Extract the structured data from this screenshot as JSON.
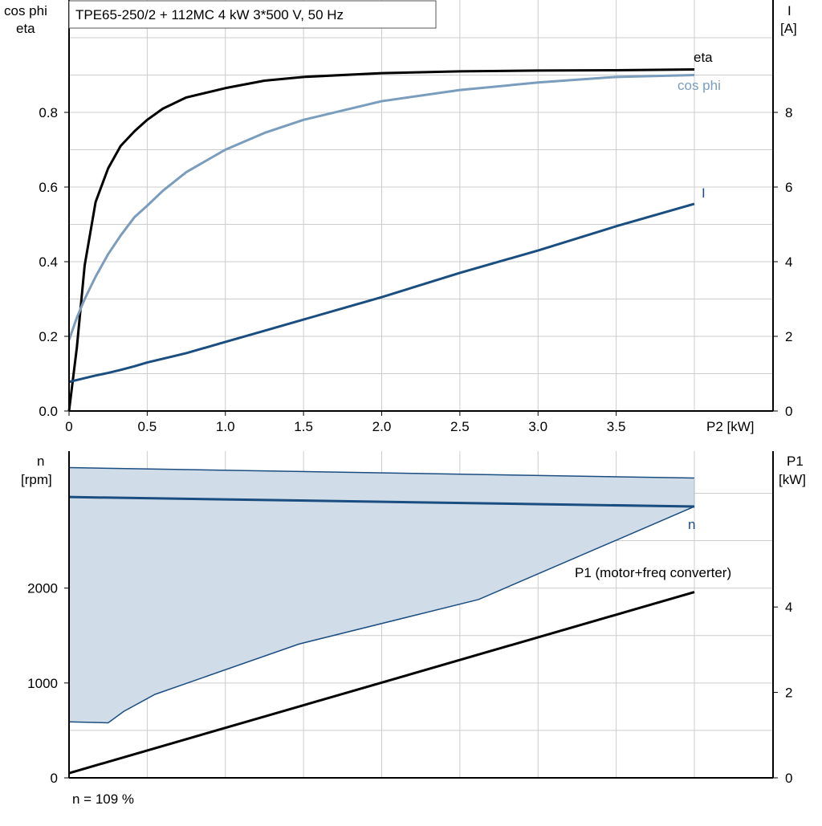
{
  "title": "TPE65-250/2 + 112MC   4 kW   3*500 V, 50 Hz",
  "footer_note": "n = 109 %",
  "colors": {
    "eta": "#000000",
    "cos_phi": "#7a9cbd",
    "current": "#1a4d80",
    "n_band_fill": "#d0dce8",
    "n_band_edge": "#1a4d80",
    "p1": "#000000",
    "grid": "#cccccc"
  },
  "chart_data": [
    {
      "type": "line",
      "panel": "top",
      "x": [
        0,
        0.05,
        0.1,
        0.17,
        0.25,
        0.33,
        0.42,
        0.5,
        0.6,
        0.75,
        1.0,
        1.25,
        1.5,
        2.0,
        2.5,
        3.0,
        3.5,
        4.0
      ],
      "xlabel": "P2 [kW]",
      "xlim": [
        0,
        4.0
      ],
      "x_ticks": [
        "0",
        "0.5",
        "1.0",
        "1.5",
        "2.0",
        "2.5",
        "3.0",
        "3.5"
      ],
      "ylabel_left": [
        "cos phi",
        "eta"
      ],
      "ylim_left": [
        0,
        1.0
      ],
      "y_ticks_left": [
        "0.0",
        "0.2",
        "0.4",
        "0.6",
        "0.8"
      ],
      "ylabel_right": [
        "I",
        "[A]"
      ],
      "ylim_right": [
        0,
        10
      ],
      "y_ticks_right": [
        "0",
        "2",
        "4",
        "6",
        "8"
      ],
      "grid": true,
      "series": [
        {
          "name": "eta",
          "axis": "left",
          "values": [
            0.0,
            0.17,
            0.39,
            0.56,
            0.65,
            0.71,
            0.75,
            0.78,
            0.81,
            0.84,
            0.865,
            0.885,
            0.895,
            0.905,
            0.91,
            0.912,
            0.913,
            0.915
          ]
        },
        {
          "name": "cos phi",
          "axis": "left",
          "values": [
            0.19,
            0.25,
            0.3,
            0.36,
            0.42,
            0.47,
            0.52,
            0.55,
            0.59,
            0.64,
            0.7,
            0.745,
            0.78,
            0.83,
            0.86,
            0.88,
            0.895,
            0.9
          ]
        },
        {
          "name": "I",
          "axis": "right",
          "values": [
            0.78,
            0.83,
            0.88,
            0.95,
            1.02,
            1.1,
            1.2,
            1.3,
            1.4,
            1.55,
            1.85,
            2.15,
            2.45,
            3.05,
            3.7,
            4.3,
            4.95,
            5.55
          ]
        }
      ]
    },
    {
      "type": "area",
      "panel": "bottom",
      "xlim": [
        0,
        4.0
      ],
      "ylabel_left": [
        "n",
        "[rpm]"
      ],
      "ylim_left": [
        0,
        3300
      ],
      "y_ticks_left": [
        "0",
        "1000",
        "2000"
      ],
      "y_tick_values_left": [
        0,
        1000,
        2000
      ],
      "ylabel_right": [
        "P1",
        "[kW]"
      ],
      "ylim_right": [
        0,
        7.33
      ],
      "y_ticks_right": [
        "0",
        "2",
        "4"
      ],
      "y_tick_values_right": [
        0,
        2,
        4
      ],
      "grid": true,
      "series": [
        {
          "name": "n",
          "axis": "left",
          "x": [
            0,
            4.0
          ],
          "values": [
            2960,
            2860
          ]
        },
        {
          "name": "P1 (motor+freq converter)",
          "axis": "right",
          "x": [
            0,
            4.0
          ],
          "values": [
            0.11,
            4.35
          ]
        }
      ],
      "band": {
        "axis": "left",
        "upper": {
          "x": [
            0,
            4.0
          ],
          "values": [
            3270,
            3160
          ]
        },
        "lower": {
          "x": [
            0,
            0.25,
            0.35,
            0.55,
            1.47,
            2.62,
            4.0
          ],
          "values": [
            590,
            580,
            700,
            880,
            1410,
            1880,
            2860
          ]
        }
      }
    }
  ]
}
